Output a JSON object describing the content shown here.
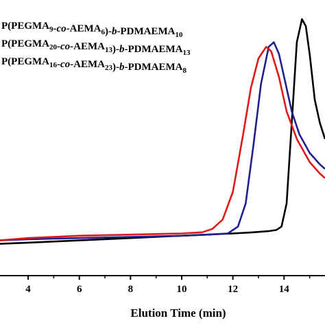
{
  "chart_data": {
    "type": "line",
    "xlabel": "Elution Time (min)",
    "ylabel": "",
    "xlim": [
      2.9,
      15.6
    ],
    "ylim": [
      0,
      1.0
    ],
    "x_ticks": [
      4,
      6,
      8,
      10,
      12,
      14
    ],
    "grid": false,
    "legend_position": "top-left",
    "series": [
      {
        "legend_parts": [
          {
            "text": "P(PEGMA",
            "style": "normal"
          },
          {
            "text": "9",
            "style": "sub"
          },
          {
            "text": "-",
            "style": "normal"
          },
          {
            "text": "co",
            "style": "italic"
          },
          {
            "text": "-AEMA",
            "style": "normal"
          },
          {
            "text": "6",
            "style": "sub"
          },
          {
            "text": ")-",
            "style": "normal"
          },
          {
            "text": "b",
            "style": "italic"
          },
          {
            "text": "-PDMAEMA",
            "style": "normal"
          },
          {
            "text": "10",
            "style": "sub"
          }
        ],
        "color": "#000000",
        "x": [
          2.9,
          4.0,
          6.0,
          8.0,
          10.0,
          11.0,
          12.0,
          12.8,
          13.4,
          13.7,
          13.9,
          14.1,
          14.3,
          14.5,
          14.7,
          14.85,
          15.0,
          15.2,
          15.4,
          15.6
        ],
        "y": [
          0.025,
          0.03,
          0.04,
          0.05,
          0.06,
          0.065,
          0.07,
          0.075,
          0.08,
          0.085,
          0.1,
          0.2,
          0.55,
          0.9,
          1.0,
          0.97,
          0.85,
          0.65,
          0.55,
          0.48
        ]
      },
      {
        "legend_parts": [
          {
            "text": "P(PEGMA",
            "style": "normal"
          },
          {
            "text": "20",
            "style": "sub"
          },
          {
            "text": "-",
            "style": "normal"
          },
          {
            "text": "co",
            "style": "italic"
          },
          {
            "text": "-AEMA",
            "style": "normal"
          },
          {
            "text": "13",
            "style": "sub"
          },
          {
            "text": ")-",
            "style": "normal"
          },
          {
            "text": "b",
            "style": "italic"
          },
          {
            "text": "-PDMAEMA",
            "style": "normal"
          },
          {
            "text": "13",
            "style": "sub"
          }
        ],
        "color": "#1f1f8f",
        "x": [
          2.9,
          4.0,
          6.0,
          8.0,
          10.0,
          11.0,
          11.8,
          12.2,
          12.5,
          12.8,
          13.1,
          13.4,
          13.6,
          13.8,
          14.0,
          14.3,
          14.6,
          15.0,
          15.4,
          15.6
        ],
        "y": [
          0.04,
          0.045,
          0.05,
          0.055,
          0.06,
          0.065,
          0.07,
          0.1,
          0.2,
          0.45,
          0.72,
          0.88,
          0.9,
          0.85,
          0.75,
          0.6,
          0.5,
          0.42,
          0.37,
          0.35
        ]
      },
      {
        "legend_parts": [
          {
            "text": "P(PEGMA",
            "style": "normal"
          },
          {
            "text": "16",
            "style": "sub"
          },
          {
            "text": "-",
            "style": "normal"
          },
          {
            "text": "co",
            "style": "italic"
          },
          {
            "text": "-AEMA",
            "style": "normal"
          },
          {
            "text": "23",
            "style": "sub"
          },
          {
            "text": ")-",
            "style": "normal"
          },
          {
            "text": "b",
            "style": "italic"
          },
          {
            "text": "-PDMAEMA",
            "style": "normal"
          },
          {
            "text": "8",
            "style": "sub"
          }
        ],
        "color": "#e01818",
        "x": [
          2.9,
          4.0,
          6.0,
          8.0,
          10.0,
          10.8,
          11.2,
          11.6,
          12.0,
          12.4,
          12.7,
          13.0,
          13.3,
          13.5,
          13.8,
          14.1,
          14.5,
          15.0,
          15.4,
          15.6
        ],
        "y": [
          0.04,
          0.05,
          0.06,
          0.065,
          0.07,
          0.075,
          0.09,
          0.13,
          0.25,
          0.5,
          0.7,
          0.83,
          0.88,
          0.86,
          0.75,
          0.6,
          0.48,
          0.38,
          0.33,
          0.31
        ]
      }
    ]
  }
}
